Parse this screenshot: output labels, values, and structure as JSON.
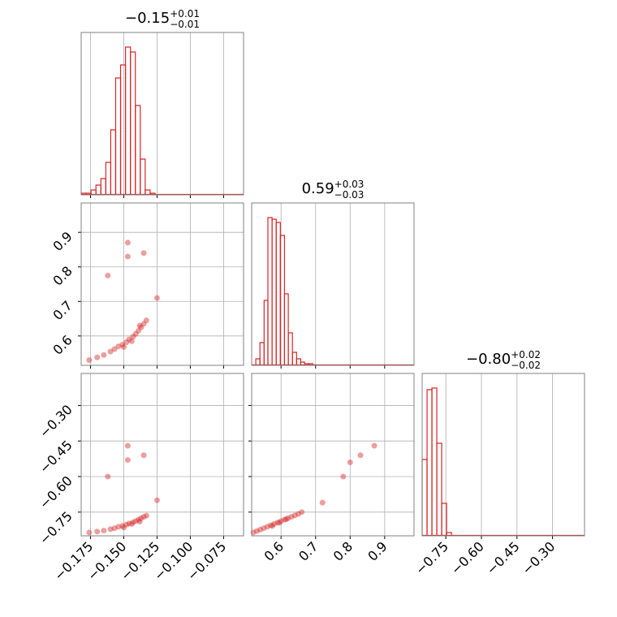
{
  "chart_data": {
    "type": "corner",
    "color": "#d62728",
    "grid": true,
    "hist_ylim": [
      0,
      100
    ],
    "parameters": [
      {
        "title": {
          "value": "−0.15",
          "plus": "+0.01",
          "minus": "−0.01"
        },
        "lim": [
          -0.182,
          -0.06
        ],
        "ticks": [
          {
            "value": -0.175,
            "label": "−0.175"
          },
          {
            "value": -0.15,
            "label": "−0.150"
          },
          {
            "value": -0.125,
            "label": "−0.125"
          },
          {
            "value": -0.1,
            "label": "−0.100"
          },
          {
            "value": -0.075,
            "label": "−0.075"
          }
        ],
        "hist": {
          "bins": [
            -0.182,
            -0.1783,
            -0.1746,
            -0.1709,
            -0.1672,
            -0.1635,
            -0.1598,
            -0.1561,
            -0.1524,
            -0.1487,
            -0.145,
            -0.1413,
            -0.1376,
            -0.1339,
            -0.1302,
            -0.1265
          ],
          "counts": [
            1,
            1,
            3,
            6,
            10,
            20,
            40,
            72,
            80,
            91,
            88,
            55,
            22,
            3,
            1
          ]
        }
      },
      {
        "title": {
          "value": "0.59",
          "plus": "+0.03",
          "minus": "−0.03"
        },
        "lim": [
          0.515,
          0.985
        ],
        "ticks": [
          0.6,
          0.7,
          0.8,
          0.9
        ],
        "hist": {
          "bins": [
            0.527,
            0.539,
            0.551,
            0.562,
            0.574,
            0.586,
            0.598,
            0.61,
            0.621,
            0.633,
            0.645,
            0.657,
            0.668,
            0.68,
            0.692
          ],
          "counts": [
            4,
            14,
            40,
            91,
            90,
            88,
            80,
            44,
            20,
            8,
            4,
            2,
            1,
            1
          ]
        }
      },
      {
        "title": {
          "value": "−0.80",
          "plus": "+0.02",
          "minus": "−0.02"
        },
        "lim": [
          -0.85,
          -0.165
        ],
        "ticks": [
          {
            "value": -0.75,
            "label": "−0.75"
          },
          {
            "value": -0.6,
            "label": "−0.60"
          },
          {
            "value": -0.45,
            "label": "−0.45"
          },
          {
            "value": -0.3,
            "label": "−0.30"
          }
        ],
        "hist": {
          "bins": [
            -0.85,
            -0.8294,
            -0.8088,
            -0.7882,
            -0.7676,
            -0.747,
            -0.7264
          ],
          "counts": [
            47,
            90,
            91,
            57,
            20,
            2
          ]
        }
      }
    ],
    "pairs": [
      {
        "x_param": 0,
        "y_param": 1,
        "x": [
          -0.176,
          -0.17,
          -0.165,
          -0.16,
          -0.157,
          -0.154,
          -0.151,
          -0.148,
          -0.146,
          -0.143,
          -0.141,
          -0.139,
          -0.137,
          -0.135,
          -0.133,
          -0.15,
          -0.144,
          -0.138,
          -0.147,
          -0.147,
          -0.135,
          -0.162,
          -0.125
        ],
        "y": [
          0.53,
          0.538,
          0.545,
          0.555,
          0.562,
          0.57,
          0.575,
          0.582,
          0.59,
          0.598,
          0.606,
          0.615,
          0.625,
          0.635,
          0.645,
          0.568,
          0.585,
          0.63,
          0.87,
          0.83,
          0.84,
          0.775,
          0.71
        ]
      },
      {
        "x_param": 0,
        "y_param": 2,
        "x": [
          -0.176,
          -0.17,
          -0.165,
          -0.16,
          -0.157,
          -0.154,
          -0.151,
          -0.148,
          -0.146,
          -0.143,
          -0.141,
          -0.139,
          -0.137,
          -0.135,
          -0.133,
          -0.15,
          -0.144,
          -0.138,
          -0.147,
          -0.147,
          -0.135,
          -0.162,
          -0.125
        ],
        "y": [
          -0.836,
          -0.832,
          -0.828,
          -0.822,
          -0.818,
          -0.812,
          -0.808,
          -0.803,
          -0.798,
          -0.793,
          -0.788,
          -0.782,
          -0.776,
          -0.77,
          -0.765,
          -0.815,
          -0.8,
          -0.79,
          -0.47,
          -0.53,
          -0.51,
          -0.6,
          -0.7
        ]
      },
      {
        "x_param": 1,
        "y_param": 2,
        "x": [
          0.52,
          0.53,
          0.54,
          0.55,
          0.56,
          0.57,
          0.58,
          0.59,
          0.6,
          0.61,
          0.62,
          0.63,
          0.64,
          0.65,
          0.66,
          0.575,
          0.595,
          0.615,
          0.87,
          0.83,
          0.8,
          0.78,
          0.72
        ],
        "y": [
          -0.836,
          -0.83,
          -0.824,
          -0.818,
          -0.812,
          -0.806,
          -0.8,
          -0.794,
          -0.788,
          -0.782,
          -0.776,
          -0.77,
          -0.764,
          -0.758,
          -0.75,
          -0.808,
          -0.795,
          -0.78,
          -0.47,
          -0.51,
          -0.54,
          -0.6,
          -0.71
        ]
      }
    ]
  }
}
